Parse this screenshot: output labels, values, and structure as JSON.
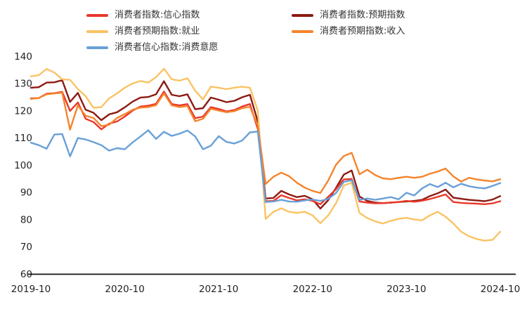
{
  "legend": {
    "items": [
      {
        "label": "消费者指数:信心指数",
        "color": "#E8382A"
      },
      {
        "label": "消费者指数:预期指数",
        "color": "#8C1A12"
      },
      {
        "label": "消费者预期指数:就业",
        "color": "#FAC364"
      },
      {
        "label": "消费者预期指数:收入",
        "color": "#F5842C"
      },
      {
        "label": "消费者信心指数:消费意愿",
        "color": "#69A0D7"
      }
    ]
  },
  "chart_data": {
    "type": "line",
    "title": "",
    "xlabel": "",
    "ylabel": "",
    "ylim": [
      60,
      140
    ],
    "grid": false,
    "legend_position": "top",
    "y_ticks": [
      140,
      130,
      120,
      110,
      100,
      90,
      80,
      70,
      60
    ],
    "x_ticks": [
      "2019-10",
      "2020-10",
      "2021-10",
      "2022-10",
      "2023-10",
      "2024-10"
    ],
    "months": [
      "2019-10",
      "2019-11",
      "2019-12",
      "2020-01",
      "2020-02",
      "2020-03",
      "2020-04",
      "2020-05",
      "2020-06",
      "2020-07",
      "2020-08",
      "2020-09",
      "2020-10",
      "2020-11",
      "2020-12",
      "2021-01",
      "2021-02",
      "2021-03",
      "2021-04",
      "2021-05",
      "2021-06",
      "2021-07",
      "2021-08",
      "2021-09",
      "2021-10",
      "2021-11",
      "2021-12",
      "2022-01",
      "2022-02",
      "2022-03",
      "2022-04",
      "2022-05",
      "2022-06",
      "2022-07",
      "2022-08",
      "2022-09",
      "2022-10",
      "2022-11",
      "2022-12",
      "2023-01",
      "2023-02",
      "2023-03",
      "2023-04",
      "2023-05",
      "2023-06",
      "2023-07",
      "2023-08",
      "2023-09",
      "2023-10",
      "2023-11",
      "2023-12",
      "2024-01",
      "2024-02",
      "2024-03",
      "2024-04",
      "2024-05",
      "2024-06",
      "2024-07",
      "2024-08",
      "2024-09",
      "2024-10"
    ],
    "series": [
      {
        "name": "消费者指数:信心指数",
        "color": "#E8382A",
        "values": [
          124.5,
          124.6,
          126.2,
          126.4,
          126.9,
          119.9,
          123.0,
          117.0,
          115.8,
          113.1,
          115.2,
          116.0,
          117.8,
          120.0,
          121.5,
          121.8,
          122.5,
          127.0,
          122.4,
          121.9,
          122.4,
          117.2,
          117.8,
          121.3,
          120.6,
          119.7,
          120.2,
          121.5,
          122.4,
          113.2,
          86.7,
          86.8,
          88.9,
          87.9,
          87.0,
          87.4,
          86.8,
          85.6,
          88.3,
          91.1,
          94.7,
          94.9,
          86.6,
          86.2,
          85.9,
          86.0,
          86.2,
          86.4,
          86.8,
          86.5,
          86.9,
          87.5,
          88.3,
          89.2,
          86.4,
          86.1,
          85.9,
          85.8,
          85.6,
          85.9,
          86.7
        ]
      },
      {
        "name": "消费者指数:预期指数",
        "color": "#8C1A12",
        "values": [
          128.4,
          128.6,
          130.3,
          130.4,
          131.2,
          123.2,
          126.5,
          120.3,
          119.2,
          116.5,
          118.6,
          119.4,
          121.2,
          123.3,
          124.8,
          125.0,
          126.0,
          130.8,
          125.8,
          125.3,
          126.0,
          120.5,
          120.9,
          124.8,
          124.0,
          123.1,
          123.6,
          124.9,
          125.8,
          116.0,
          87.7,
          87.9,
          90.5,
          89.2,
          88.2,
          88.7,
          87.4,
          84.0,
          87.1,
          91.6,
          96.5,
          98.0,
          88.4,
          86.8,
          86.2,
          86.0,
          86.2,
          86.4,
          86.6,
          86.8,
          87.2,
          88.6,
          89.6,
          91.0,
          88.0,
          87.6,
          87.2,
          87.0,
          86.7,
          87.3,
          88.6
        ]
      },
      {
        "name": "消费者预期指数:就业",
        "color": "#FAC364",
        "values": [
          132.6,
          133.0,
          135.3,
          134.0,
          131.5,
          131.3,
          127.9,
          125.3,
          121.0,
          121.3,
          124.5,
          126.3,
          128.4,
          130.0,
          130.9,
          130.3,
          132.3,
          135.4,
          131.5,
          131.0,
          131.9,
          127.3,
          124.1,
          128.8,
          128.4,
          127.9,
          128.4,
          128.8,
          128.4,
          120.0,
          80.2,
          82.8,
          84.1,
          82.8,
          82.4,
          82.8,
          81.5,
          78.6,
          81.5,
          86.0,
          92.5,
          93.5,
          82.4,
          80.5,
          79.3,
          78.5,
          79.5,
          80.2,
          80.6,
          80.0,
          79.7,
          81.5,
          82.8,
          81.0,
          78.5,
          75.5,
          73.8,
          72.8,
          72.2,
          72.5,
          75.5
        ]
      },
      {
        "name": "消费者预期指数:收入",
        "color": "#F5842C",
        "values": [
          124.3,
          124.6,
          126.0,
          126.3,
          126.6,
          113.0,
          121.9,
          118.1,
          117.3,
          114.3,
          114.8,
          117.3,
          118.7,
          120.3,
          121.1,
          121.3,
          122.0,
          126.3,
          121.9,
          121.3,
          121.7,
          116.1,
          117.0,
          120.7,
          120.0,
          119.4,
          119.8,
          120.9,
          121.4,
          114.5,
          93.0,
          95.7,
          97.2,
          95.9,
          93.5,
          91.7,
          90.5,
          89.7,
          94.3,
          100.1,
          103.3,
          104.5,
          96.6,
          98.3,
          96.3,
          95.1,
          94.8,
          95.3,
          95.7,
          95.3,
          95.7,
          96.8,
          97.6,
          98.7,
          95.8,
          93.9,
          95.3,
          94.7,
          94.3,
          94.0,
          94.8
        ]
      },
      {
        "name": "消费者信心指数:消费意愿",
        "color": "#69A0D7",
        "values": [
          108.2,
          107.3,
          106.0,
          111.2,
          111.4,
          103.2,
          109.9,
          109.4,
          108.4,
          107.3,
          105.3,
          106.2,
          105.8,
          108.3,
          110.5,
          112.8,
          109.6,
          112.2,
          110.7,
          111.5,
          112.7,
          110.5,
          105.8,
          107.1,
          110.6,
          108.5,
          107.9,
          109.0,
          112.0,
          112.3,
          86.4,
          86.6,
          87.2,
          86.6,
          86.5,
          87.0,
          87.3,
          86.8,
          87.6,
          89.7,
          93.8,
          94.4,
          87.2,
          87.7,
          87.2,
          87.7,
          88.2,
          87.4,
          89.8,
          88.8,
          91.4,
          93.0,
          91.9,
          93.5,
          91.8,
          93.1,
          92.2,
          91.7,
          91.4,
          92.3,
          93.4
        ]
      }
    ]
  }
}
